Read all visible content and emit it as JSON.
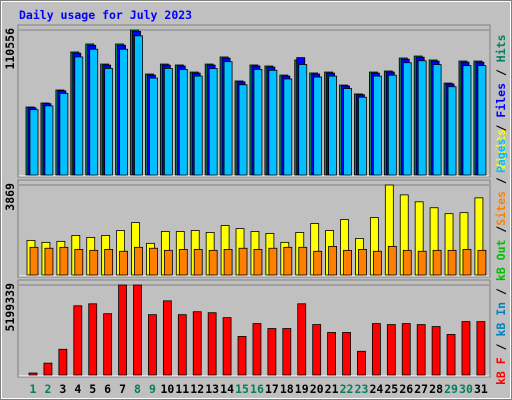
{
  "chart_data": [
    {
      "type": "bar",
      "title": "Daily usage for July 2023",
      "categories": [
        "1",
        "2",
        "3",
        "4",
        "5",
        "6",
        "7",
        "8",
        "9",
        "10",
        "11",
        "12",
        "13",
        "14",
        "15",
        "16",
        "17",
        "18",
        "19",
        "20",
        "21",
        "22",
        "23",
        "24",
        "25",
        "26",
        "27",
        "28",
        "29",
        "30",
        "31"
      ],
      "category_colors": [
        "#00805c",
        "#00805c",
        "#000000",
        "#000000",
        "#000000",
        "#000000",
        "#000000",
        "#00805c",
        "#00805c",
        "#000000",
        "#000000",
        "#000000",
        "#000000",
        "#000000",
        "#00805c",
        "#00805c",
        "#000000",
        "#000000",
        "#000000",
        "#000000",
        "#000000",
        "#00805c",
        "#00805c",
        "#000000",
        "#000000",
        "#000000",
        "#000000",
        "#000000",
        "#00805c",
        "#00805c",
        "#000000"
      ],
      "ylim": [
        0,
        110556
      ],
      "yticks": [
        110556
      ],
      "legend_separator": " / ",
      "series": [
        {
          "name": "Pages",
          "color": "#00c0ff",
          "values": [
            49800,
            52700,
            62200,
            90000,
            95900,
            81200,
            95900,
            106100,
            73900,
            81200,
            80500,
            75400,
            81200,
            86400,
            68800,
            80500,
            79800,
            73200,
            84200,
            74700,
            75400,
            65900,
            59300,
            75400,
            76100,
            85600,
            87100,
            84200,
            67300,
            83400,
            83400
          ]
        },
        {
          "name": "Files",
          "color": "#0000ff",
          "values": [
            51300,
            54400,
            64200,
            92900,
            98900,
            83800,
            98900,
            109500,
            76200,
            83800,
            83100,
            77700,
            83800,
            89100,
            71000,
            83100,
            82300,
            75400,
            89500,
            77000,
            77700,
            67900,
            61200,
            77700,
            78500,
            88300,
            89800,
            86800,
            69400,
            86000,
            86000
          ]
        },
        {
          "name": "Hits",
          "color": "#00805c",
          "values": [
            51850,
            54900,
            64800,
            93800,
            99900,
            84600,
            99900,
            110556,
            77000,
            84600,
            83900,
            78500,
            84600,
            90000,
            71700,
            83900,
            83100,
            76200,
            87700,
            77800,
            78500,
            68600,
            61800,
            78500,
            79300,
            89200,
            90700,
            87700,
            70100,
            86900,
            86900
          ]
        }
      ]
    },
    {
      "type": "bar",
      "ylim": [
        0,
        3869
      ],
      "yticks": [
        3869
      ],
      "legend_separator": " / ",
      "series": [
        {
          "name": "Sites",
          "color": "#ff8000",
          "values": [
            1190,
            1150,
            1190,
            1100,
            1060,
            1100,
            1020,
            1190,
            1150,
            1060,
            1100,
            1100,
            1060,
            1100,
            1150,
            1100,
            1150,
            1190,
            1190,
            1020,
            1230,
            1060,
            1100,
            1020,
            1230,
            1060,
            1020,
            1060,
            1060,
            1100,
            1060
          ]
        },
        {
          "name": "Visits",
          "color": "#ffff00",
          "values": [
            1488,
            1403,
            1446,
            1701,
            1616,
            1701,
            1913,
            2253,
            1361,
            1871,
            1871,
            1913,
            1828,
            2126,
            1998,
            1871,
            1786,
            1403,
            1828,
            2211,
            1913,
            2381,
            1573,
            2466,
            3869,
            3444,
            3146,
            2891,
            2636,
            2679,
            3316
          ]
        }
      ]
    },
    {
      "type": "bar",
      "ylim": [
        0,
        5199339
      ],
      "yticks": [
        5199339
      ],
      "legend_separator": " / ",
      "series": [
        {
          "name": "kB F",
          "color": "#ff0000",
          "values": [
            114273,
            685627,
            1485540,
            3999492,
            4113765,
            3542400,
            5199339,
            5199339,
            3485265,
            4285170,
            3485265,
            3656700,
            3599600,
            3313900,
            2228300,
            2971100,
            2685400,
            2685400,
            4113800,
            2913900,
            2456900,
            2456900,
            1371300,
            2971100,
            2913900,
            2971100,
            2913900,
            2799700,
            2342600,
            3085300,
            3085300
          ]
        },
        {
          "name": "kB In",
          "color": "#0080c0",
          "values": [
            0,
            0,
            0,
            0,
            0,
            0,
            0,
            0,
            0,
            0,
            0,
            0,
            0,
            0,
            0,
            0,
            0,
            0,
            0,
            0,
            0,
            0,
            0,
            0,
            0,
            0,
            0,
            0,
            0,
            0,
            0
          ]
        },
        {
          "name": "kB Out",
          "color": "#00c000",
          "values": [
            0,
            0,
            0,
            0,
            0,
            0,
            0,
            0,
            0,
            0,
            0,
            0,
            0,
            0,
            0,
            0,
            0,
            0,
            0,
            0,
            0,
            0,
            0,
            0,
            0,
            0,
            0,
            0,
            0,
            0,
            0
          ]
        }
      ]
    }
  ]
}
